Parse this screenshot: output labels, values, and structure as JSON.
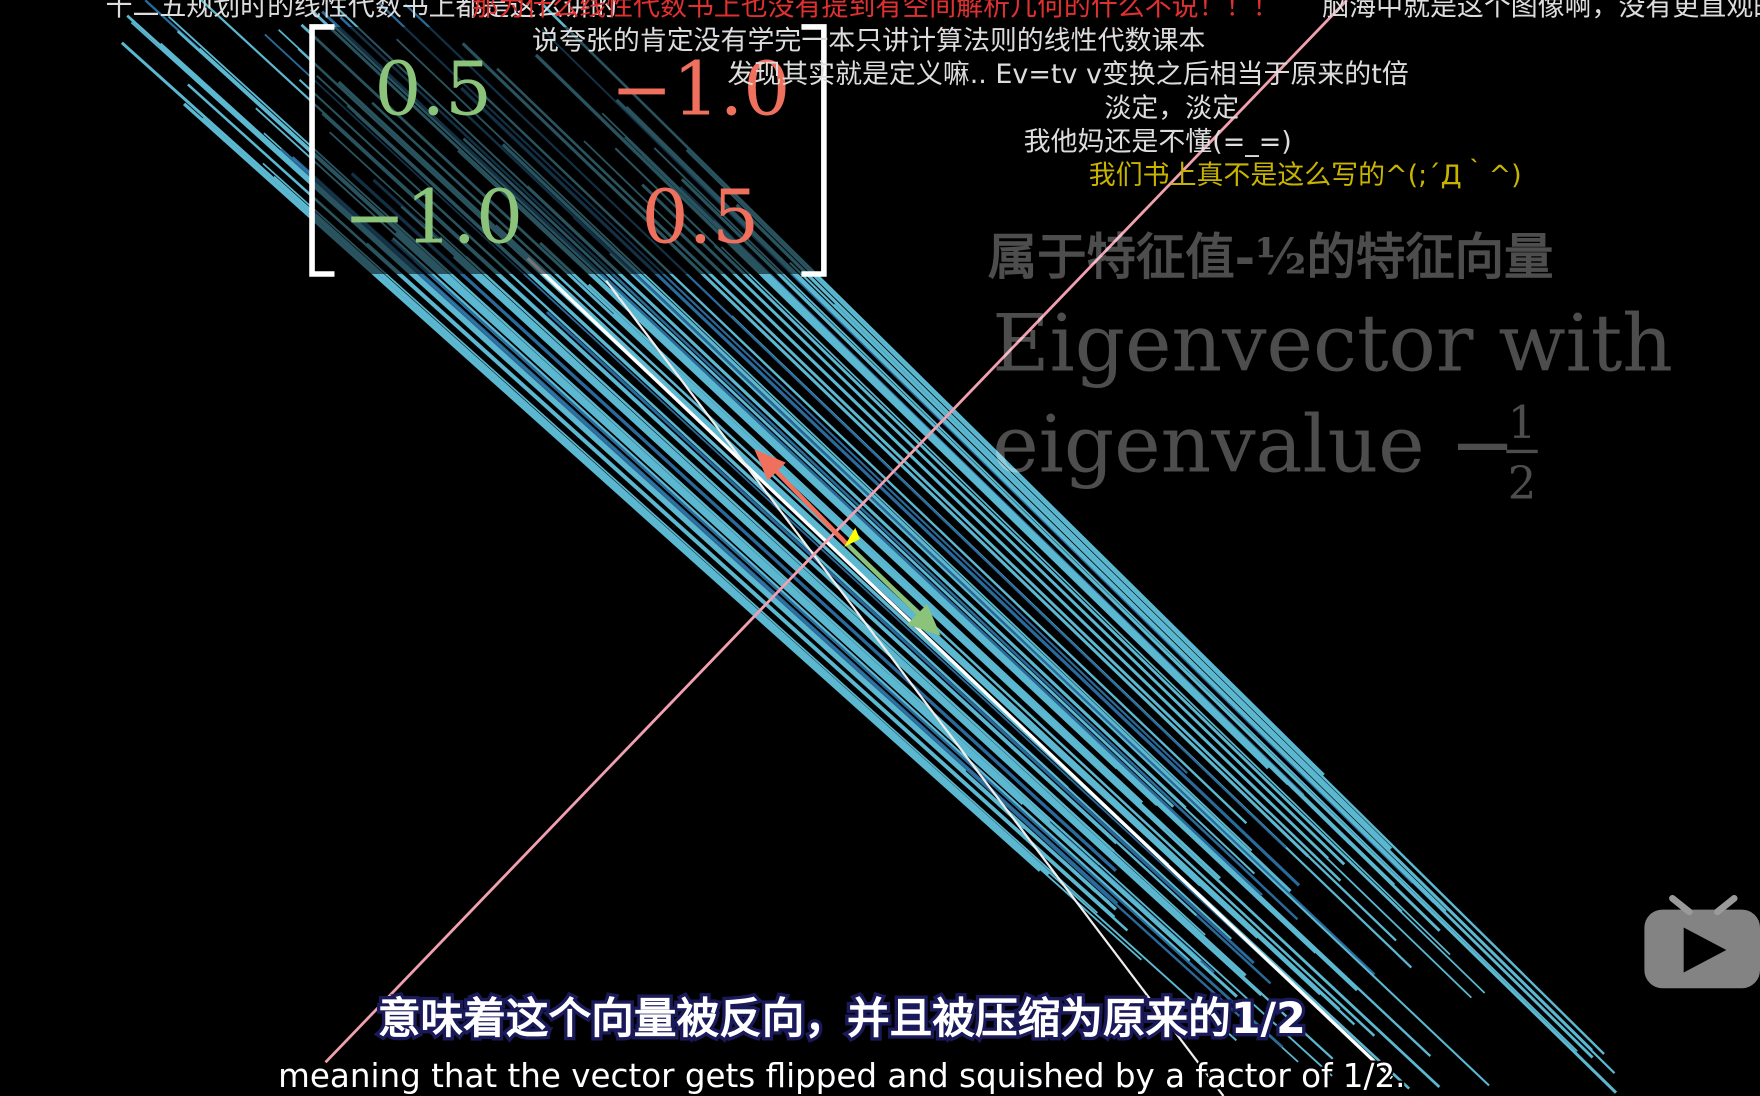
{
  "danmaku": [
    {
      "text": "十二五规划时的线性代数书上都是这么讲的"
    },
    {
      "text": "那为什么线性代数书上也没有提到有空间解析几何的什么不说！！！"
    },
    {
      "text": "脑海中就是这个图像啊，没有更直观的了"
    },
    {
      "text": "说夸张的肯定没有学完一本只讲计算法则的线性代数课本"
    },
    {
      "text": "发现其实就是定义嘛.. Ev=tv v变换之后相当于原来的t倍"
    },
    {
      "text": "淡定，淡定"
    },
    {
      "text": "我他妈还是不懂(=_=)"
    },
    {
      "text": "我们书上真不是这么写的^(;´Д｀^)"
    }
  ],
  "matrix": {
    "rows": [
      [
        "0.5",
        "−1.0"
      ],
      [
        "−1.0",
        "0.5"
      ]
    ]
  },
  "label": {
    "chinese": "属于特征值-½的特征向量",
    "line1": "Eigenvector with",
    "line2": "eigenvalue −",
    "numerator": "1",
    "denominator": "2"
  },
  "subtitles": {
    "chinese": "意味着这个向量被反向，并且被压缩为原来的1/2",
    "english": "meaning that the vector gets flipped and squished by a factor of 1/2."
  }
}
